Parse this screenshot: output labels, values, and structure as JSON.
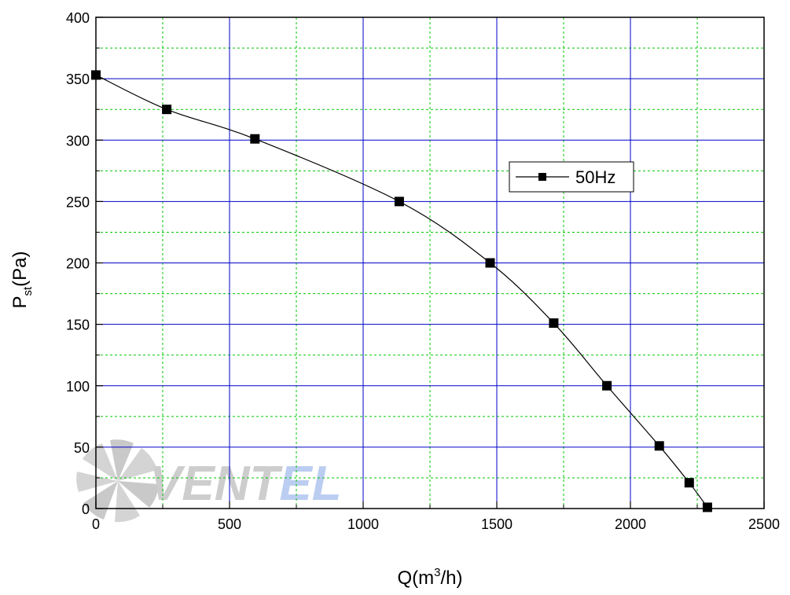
{
  "chart_data": {
    "type": "line",
    "title": "",
    "xlabel_parts": {
      "base": "Q(m",
      "sup": "3",
      "tail": "/h)"
    },
    "ylabel_parts": {
      "base": "P",
      "sub": "st",
      "tail": "(Pa)"
    },
    "xlim": [
      0,
      2500
    ],
    "ylim": [
      0,
      400
    ],
    "x_ticks": [
      0,
      500,
      1000,
      1500,
      2000,
      2500
    ],
    "y_ticks": [
      0,
      50,
      100,
      150,
      200,
      250,
      300,
      350,
      400
    ],
    "x_ticks_labels": [
      "0",
      "500",
      "1000",
      "1500",
      "2000",
      "2500"
    ],
    "y_ticks_labels": [
      "0",
      "50",
      "100",
      "150",
      "200",
      "250",
      "300",
      "350",
      "400"
    ],
    "grid": true,
    "legend_position": "right",
    "series": [
      {
        "name": "50Hz",
        "x": [
          0,
          265,
          595,
          1135,
          1475,
          1713,
          1912,
          2108,
          2220,
          2288
        ],
        "y": [
          353,
          325,
          301,
          250,
          200,
          151,
          100,
          51,
          21,
          1
        ]
      }
    ]
  },
  "watermark": {
    "part1": "VENT",
    "part2": "EL"
  },
  "colors": {
    "major_grid": "#0000c8",
    "minor_grid": "#00c800",
    "line": "#000000",
    "marker": "#000000",
    "watermark_grey": "#c8c8c8",
    "watermark_blue": "#b4c8f0"
  }
}
